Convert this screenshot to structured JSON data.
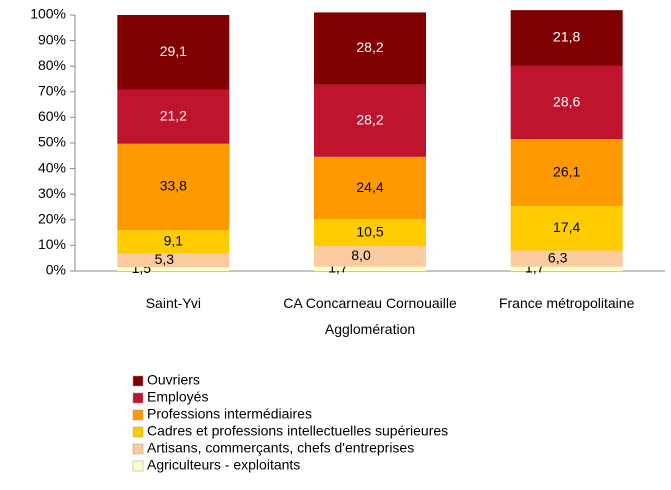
{
  "chart_data": {
    "type": "stacked_bar_100",
    "categories": [
      "Saint-Yvi",
      "CA Concarneau Cornouaille Agglomération",
      "France métropolitaine"
    ],
    "series": [
      {
        "name": "Agriculteurs - exploitants",
        "color": "#ffffcc",
        "values": [
          1.5,
          1.7,
          1.7
        ],
        "value_labels": [
          "1,5",
          "1,7",
          "1,7"
        ]
      },
      {
        "name": "Artisans, commerçants, chefs d'entreprises",
        "color": "#fbcba0",
        "values": [
          5.3,
          8.0,
          6.3
        ],
        "value_labels": [
          "5,3",
          "8,0",
          "6,3"
        ]
      },
      {
        "name": "Cadres et professions intellectuelles supérieures",
        "color": "#ffcc00",
        "values": [
          9.1,
          10.5,
          17.4
        ],
        "value_labels": [
          "9,1",
          "10,5",
          "17,4"
        ]
      },
      {
        "name": "Professions intermédiaires",
        "color": "#ff9900",
        "values": [
          33.8,
          24.4,
          26.1
        ],
        "value_labels": [
          "33,8",
          "24,4",
          "26,1"
        ]
      },
      {
        "name": "Employés",
        "color": "#c0142e",
        "values": [
          21.2,
          28.2,
          28.6
        ],
        "value_labels": [
          "21,2",
          "28,2",
          "28,6"
        ]
      },
      {
        "name": "Ouvriers",
        "color": "#7f0000",
        "values": [
          29.1,
          28.2,
          21.8
        ],
        "value_labels": [
          "29,1",
          "28,2",
          "21,8"
        ]
      }
    ],
    "ylim": [
      0,
      100
    ],
    "yticks": [
      {
        "value": 0,
        "label": "0%"
      },
      {
        "value": 10,
        "label": "10%"
      },
      {
        "value": 20,
        "label": "20%"
      },
      {
        "value": 30,
        "label": "30%"
      },
      {
        "value": 40,
        "label": "40%"
      },
      {
        "value": 50,
        "label": "50%"
      },
      {
        "value": 60,
        "label": "60%"
      },
      {
        "value": 70,
        "label": "70%"
      },
      {
        "value": 80,
        "label": "80%"
      },
      {
        "value": 90,
        "label": "90%"
      },
      {
        "value": 100,
        "label": "100%"
      }
    ],
    "grid": false
  }
}
